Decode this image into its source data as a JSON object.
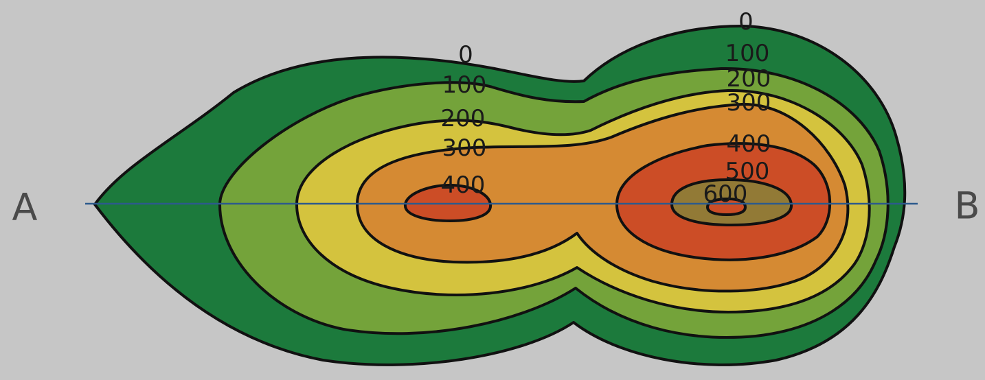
{
  "map": {
    "contour_levels": [
      0,
      100,
      200,
      300,
      400,
      500,
      600
    ],
    "band_colors": {
      "0": "#1c7a3c",
      "100": "#74a33a",
      "200": "#d4c33e",
      "300": "#d58a33",
      "400": "#cc4d26",
      "500": "#927a36",
      "600": "#cc4d26"
    },
    "contour_labels": [
      {
        "id": "0-left",
        "text": "0"
      },
      {
        "id": "100-left",
        "text": "100"
      },
      {
        "id": "200-left",
        "text": "200"
      },
      {
        "id": "300-left",
        "text": "300"
      },
      {
        "id": "400-left",
        "text": "400"
      },
      {
        "id": "0-right",
        "text": "0"
      },
      {
        "id": "100-right",
        "text": "100"
      },
      {
        "id": "200-right",
        "text": "200"
      },
      {
        "id": "300-right",
        "text": "300"
      },
      {
        "id": "400-right",
        "text": "400"
      },
      {
        "id": "500-right",
        "text": "500"
      },
      {
        "id": "600-right",
        "text": "600"
      }
    ],
    "profile_line": {
      "start_label": "A",
      "end_label": "B",
      "color": "#2c5a8c"
    }
  }
}
